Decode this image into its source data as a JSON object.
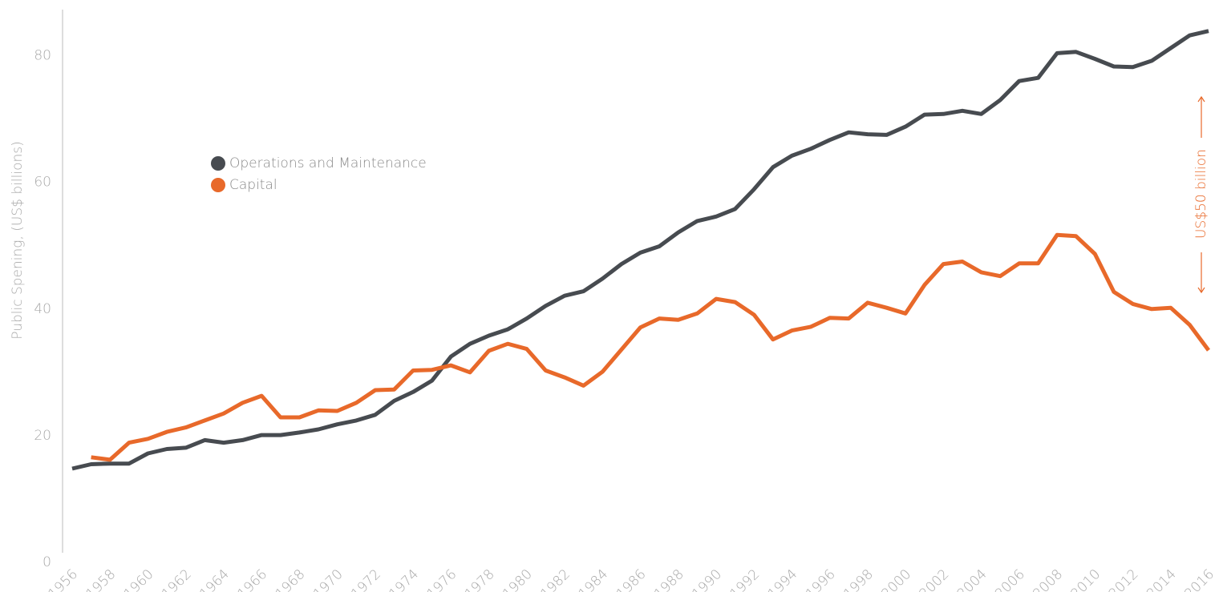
{
  "chart_data": {
    "type": "line",
    "y_label": "Public Spening, (US$ billions)",
    "annotation": "US$50 billion",
    "annotation_color": "#e8692a",
    "x": [
      1956,
      1957,
      1958,
      1959,
      1960,
      1961,
      1962,
      1963,
      1964,
      1965,
      1966,
      1967,
      1968,
      1969,
      1970,
      1971,
      1972,
      1973,
      1974,
      1975,
      1976,
      1977,
      1978,
      1979,
      1980,
      1981,
      1982,
      1983,
      1984,
      1985,
      1986,
      1987,
      1988,
      1989,
      1990,
      1991,
      1992,
      1993,
      1994,
      1995,
      1996,
      1997,
      1998,
      1999,
      2000,
      2001,
      2002,
      2003,
      2004,
      2005,
      2006,
      2007,
      2008,
      2009,
      2010,
      2011,
      2012,
      2013,
      2014,
      2015,
      2016
    ],
    "xlim": [
      1956,
      2016
    ],
    "xticks": [
      1956,
      1958,
      1960,
      1962,
      1964,
      1966,
      1968,
      1970,
      1972,
      1974,
      1976,
      1978,
      1980,
      1982,
      1984,
      1986,
      1988,
      1990,
      1992,
      1994,
      1996,
      1998,
      2000,
      2002,
      2004,
      2006,
      2008,
      2010,
      2012,
      2014,
      2016
    ],
    "ylim": [
      0,
      85
    ],
    "yticks": [
      0,
      20,
      40,
      60,
      80
    ],
    "series": [
      {
        "name": "Operations and Maintenance",
        "color": "#474b50",
        "values": [
          14.8,
          15.5,
          15.6,
          15.6,
          17.2,
          17.9,
          18.1,
          19.3,
          18.9,
          19.3,
          20.1,
          20.1,
          20.5,
          21.0,
          21.8,
          22.4,
          23.3,
          25.5,
          26.9,
          28.7,
          32.5,
          34.5,
          35.8,
          36.8,
          38.5,
          40.5,
          42.1,
          42.8,
          44.8,
          47.1,
          48.9,
          49.9,
          52.1,
          53.9,
          54.6,
          55.8,
          58.9,
          62.4,
          64.2,
          65.3,
          66.7,
          67.9,
          67.6,
          67.5,
          68.8,
          70.7,
          70.8,
          71.3,
          70.8,
          73.0,
          76.0,
          76.5,
          80.4,
          80.6,
          79.5,
          78.3,
          78.2,
          79.2,
          81.2,
          83.2,
          83.9
        ]
      },
      {
        "name": "Capital",
        "color": "#e8692a",
        "values": [
          null,
          16.6,
          16.2,
          18.9,
          19.5,
          20.6,
          21.3,
          22.4,
          23.5,
          25.2,
          26.3,
          22.9,
          22.9,
          24.0,
          23.9,
          25.2,
          27.2,
          27.3,
          30.3,
          30.4,
          31.1,
          30.0,
          33.4,
          34.5,
          33.7,
          30.3,
          29.2,
          27.9,
          30.1,
          33.6,
          37.1,
          38.5,
          38.3,
          39.3,
          41.6,
          41.1,
          39.1,
          35.2,
          36.6,
          37.2,
          38.6,
          38.5,
          41.0,
          40.2,
          39.3,
          43.8,
          47.1,
          47.5,
          45.8,
          45.2,
          47.2,
          47.2,
          51.7,
          51.5,
          48.7,
          42.7,
          40.8,
          40.0,
          40.2,
          37.5,
          33.5
        ]
      }
    ]
  }
}
